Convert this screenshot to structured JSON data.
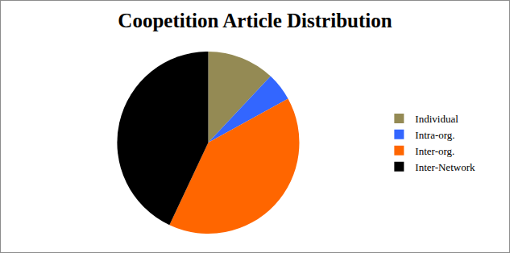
{
  "chart_data": {
    "type": "pie",
    "title": "Coopetition Article Distribution",
    "categories": [
      "Individual",
      "Intra-org.",
      "Inter-org.",
      "Inter-Network"
    ],
    "values": [
      12,
      5,
      40,
      43
    ],
    "colors": [
      "#948a54",
      "#3366ff",
      "#ff6600",
      "#000000"
    ],
    "legend": "right"
  }
}
